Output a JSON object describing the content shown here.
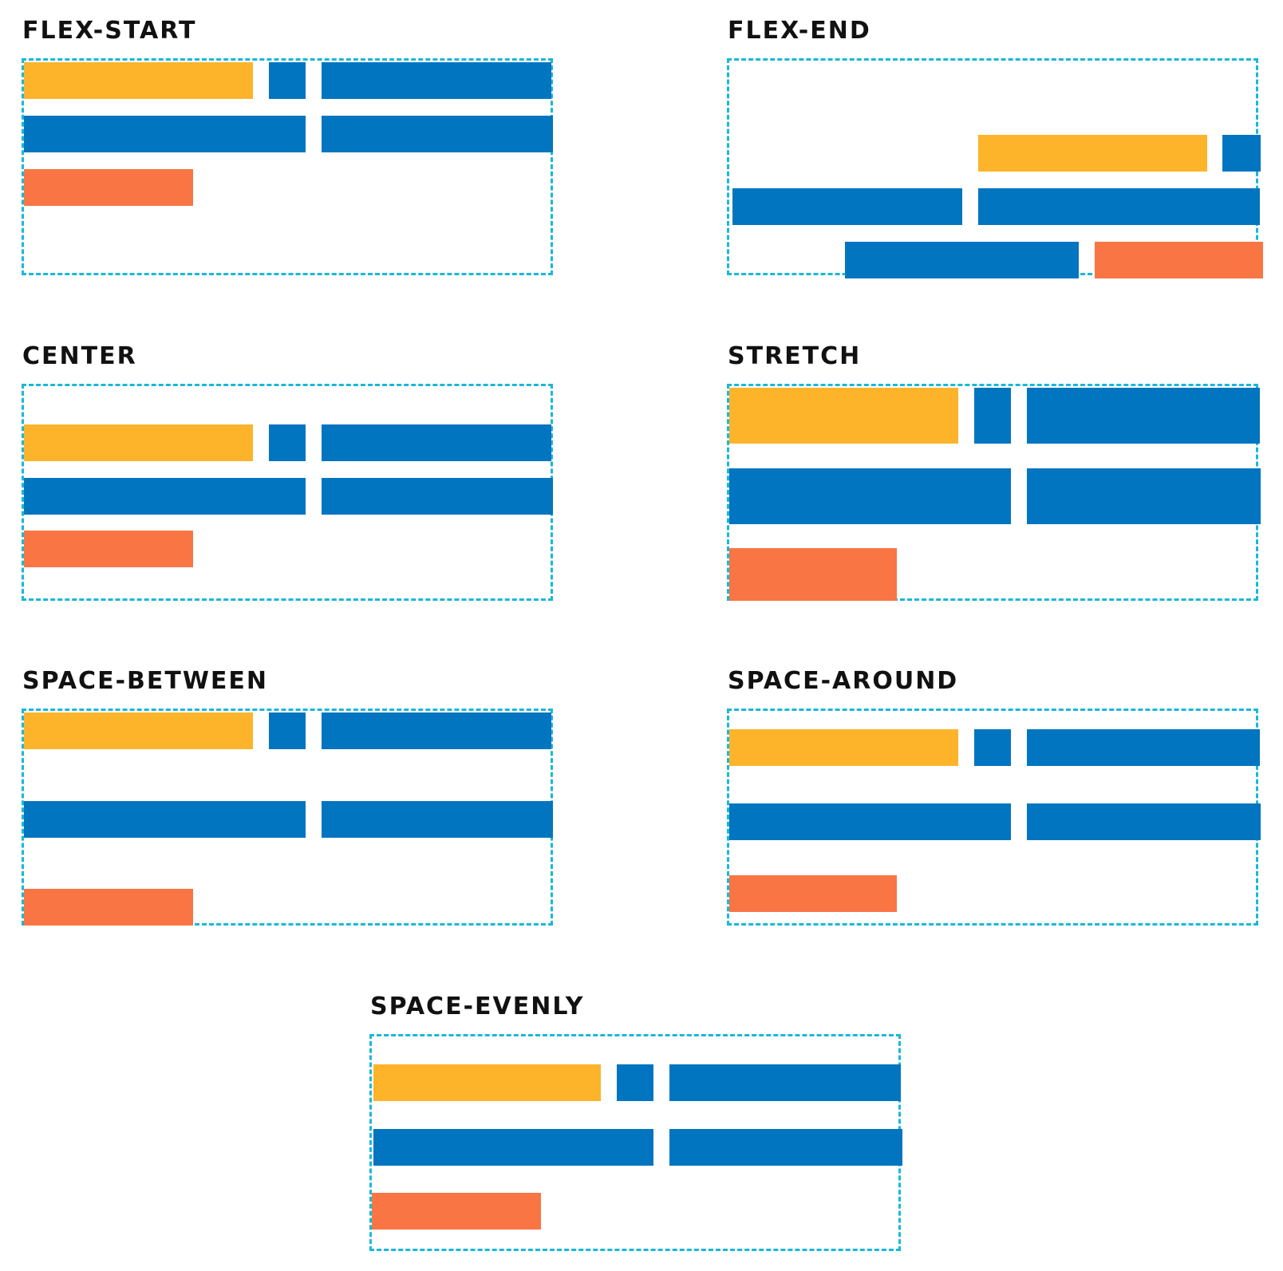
{
  "colors": {
    "border": "#19b8d8",
    "yellow": "#fdb42a",
    "blue": "#0275c0",
    "orange": "#f97544"
  },
  "panels": [
    {
      "title": "FLEX-START"
    },
    {
      "title": "FLEX-END"
    },
    {
      "title": "CENTER"
    },
    {
      "title": "STRETCH"
    },
    {
      "title": "SPACE-BETWEEN"
    },
    {
      "title": "SPACE-AROUND"
    },
    {
      "title": "SPACE-EVENLY"
    }
  ]
}
